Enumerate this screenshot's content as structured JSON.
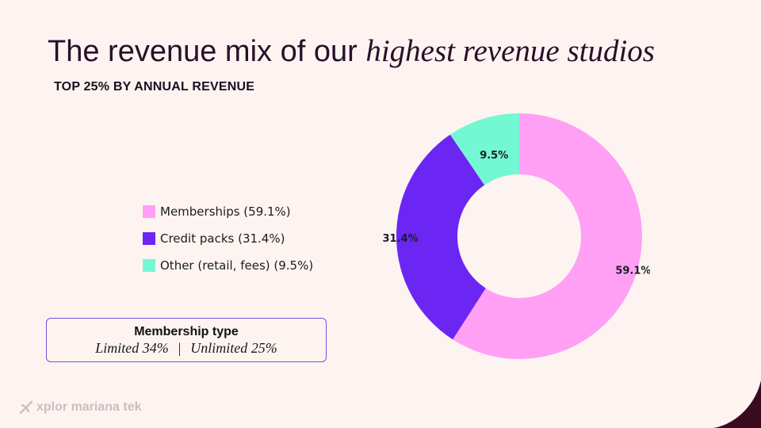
{
  "slide": {
    "title_plain": "The revenue mix of our ",
    "title_italic": "highest revenue studios",
    "subtitle": "TOP 25% BY ANNUAL REVENUE"
  },
  "callout": {
    "title": "Membership type",
    "limited": "Limited 34%",
    "separator": "|",
    "unlimited": "Unlimited 25%"
  },
  "brand": {
    "name": "xplor mariana tek",
    "icon": "xplor-logo-icon"
  },
  "colors": {
    "background": "#fdf4f1",
    "memberships": "#ffa0f5",
    "credit_packs": "#6b26f4",
    "other": "#74f8d4",
    "corner": "#3a0a1e"
  },
  "chart_data": {
    "type": "pie",
    "variant": "donut",
    "title": "",
    "legend_position": "left",
    "categories": [
      "Memberships",
      "Credit packs",
      "Other (retail, fees)"
    ],
    "values": [
      59.1,
      31.4,
      9.5
    ],
    "legend_labels": [
      "Memberships (59.1%)",
      "Credit packs (31.4%)",
      "Other (retail, fees) (9.5%)"
    ],
    "slice_labels": [
      "59.1%",
      "31.4%",
      "9.5%"
    ],
    "colors": [
      "#ffa0f5",
      "#6b26f4",
      "#74f8d4"
    ]
  }
}
